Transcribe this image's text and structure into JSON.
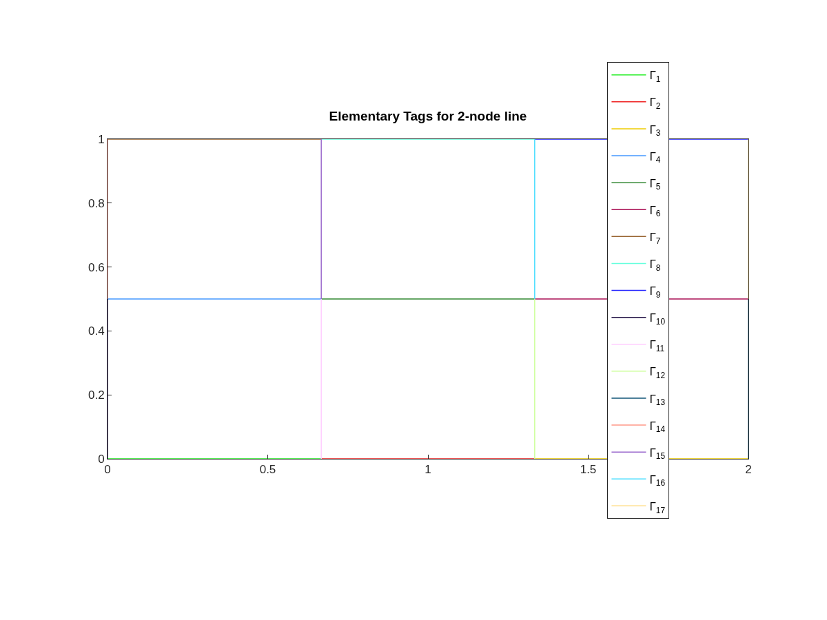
{
  "chart_data": {
    "type": "line",
    "title": "Elementary Tags for 2-node line",
    "xlim": [
      0,
      2
    ],
    "ylim": [
      0,
      1
    ],
    "xticks": [
      0,
      0.5,
      1,
      1.5,
      2
    ],
    "yticks": [
      0,
      0.2,
      0.4,
      0.6,
      0.8,
      1
    ],
    "grid": false,
    "legend": "top right",
    "marker": "none",
    "line_style": "solid",
    "series": [
      {
        "name": "Γ$_{1}$",
        "color": "#22ee22",
        "x": [
          0,
          0.667
        ],
        "values": [
          0,
          0
        ]
      },
      {
        "name": "Γ$_{2}$",
        "color": "#ee2222",
        "x": [
          0.667,
          1.333
        ],
        "values": [
          0,
          0
        ]
      },
      {
        "name": "Γ$_{3}$",
        "color": "#eecc00",
        "x": [
          1.333,
          2
        ],
        "values": [
          0,
          0
        ]
      },
      {
        "name": "Γ$_{4}$",
        "color": "#4499ff",
        "x": [
          0,
          0.667
        ],
        "values": [
          0.5,
          0.5
        ]
      },
      {
        "name": "Γ$_{5}$",
        "color": "#338833",
        "x": [
          0.667,
          1.333
        ],
        "values": [
          0.5,
          0.5
        ]
      },
      {
        "name": "Γ$_{6}$",
        "color": "#aa1155",
        "x": [
          1.333,
          2
        ],
        "values": [
          0.5,
          0.5
        ]
      },
      {
        "name": "Γ$_{7}$",
        "color": "#996633",
        "x": [
          0,
          0.667
        ],
        "values": [
          1,
          1
        ]
      },
      {
        "name": "Γ$_{8}$",
        "color": "#66ffdd",
        "x": [
          0.667,
          1.333
        ],
        "values": [
          1,
          1
        ]
      },
      {
        "name": "Γ$_{9}$",
        "color": "#2222ff",
        "x": [
          1.333,
          2
        ],
        "values": [
          1,
          1
        ]
      },
      {
        "name": "Γ$_{10}$",
        "color": "#221144",
        "x": [
          0,
          0
        ],
        "values": [
          0,
          0.5
        ]
      },
      {
        "name": "Γ$_{11}$",
        "color": "#ffccff",
        "x": [
          0.667,
          0.667
        ],
        "values": [
          0,
          0.5
        ]
      },
      {
        "name": "Γ$_{12}$",
        "color": "#ccff99",
        "x": [
          1.333,
          1.333
        ],
        "values": [
          0,
          0.5
        ]
      },
      {
        "name": "Γ$_{13}$",
        "color": "#115577",
        "x": [
          2,
          2
        ],
        "values": [
          0,
          0.5
        ]
      },
      {
        "name": "Γ$_{14}$",
        "color": "#ff9988",
        "x": [
          0,
          0
        ],
        "values": [
          0.5,
          1
        ]
      },
      {
        "name": "Γ$_{15}$",
        "color": "#9966cc",
        "x": [
          0.667,
          0.667
        ],
        "values": [
          0.5,
          1
        ]
      },
      {
        "name": "Γ$_{16}$",
        "color": "#44ddff",
        "x": [
          1.333,
          1.333
        ],
        "values": [
          0.5,
          1
        ]
      },
      {
        "name": "Γ$_{17}$",
        "color": "#ffdd88",
        "x": [
          2,
          2
        ],
        "values": [
          0.5,
          1
        ]
      }
    ]
  }
}
